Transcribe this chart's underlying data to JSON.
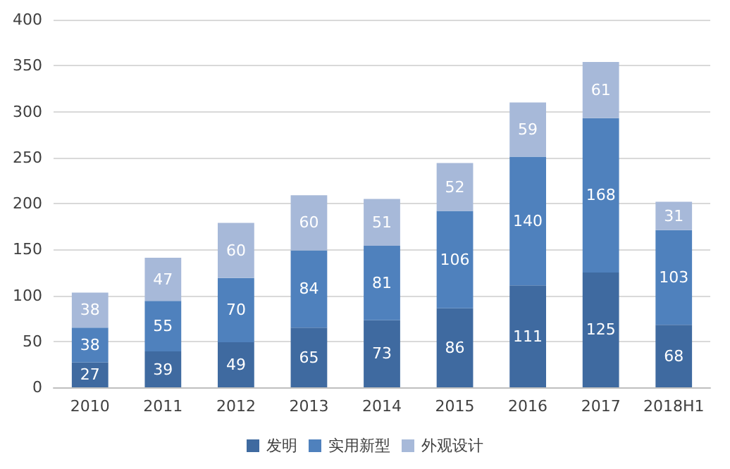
{
  "chart_data": {
    "type": "bar",
    "stacked": true,
    "categories": [
      "2010",
      "2011",
      "2012",
      "2013",
      "2014",
      "2015",
      "2016",
      "2017",
      "2018H1"
    ],
    "series": [
      {
        "name": "发明",
        "color": "#3f6aa0",
        "values": [
          27,
          39,
          49,
          65,
          73,
          86,
          111,
          125,
          68
        ]
      },
      {
        "name": "实用新型",
        "color": "#4f81bd",
        "values": [
          38,
          55,
          70,
          84,
          81,
          106,
          140,
          168,
          103
        ]
      },
      {
        "name": "外观设计",
        "color": "#a7b9d9",
        "values": [
          38,
          47,
          60,
          60,
          51,
          52,
          59,
          61,
          31
        ]
      }
    ],
    "ylim": [
      0,
      400
    ],
    "yticks": [
      0,
      50,
      100,
      150,
      200,
      250,
      300,
      350,
      400
    ],
    "grid": "y",
    "legend": "bottom",
    "data_labels": true
  }
}
